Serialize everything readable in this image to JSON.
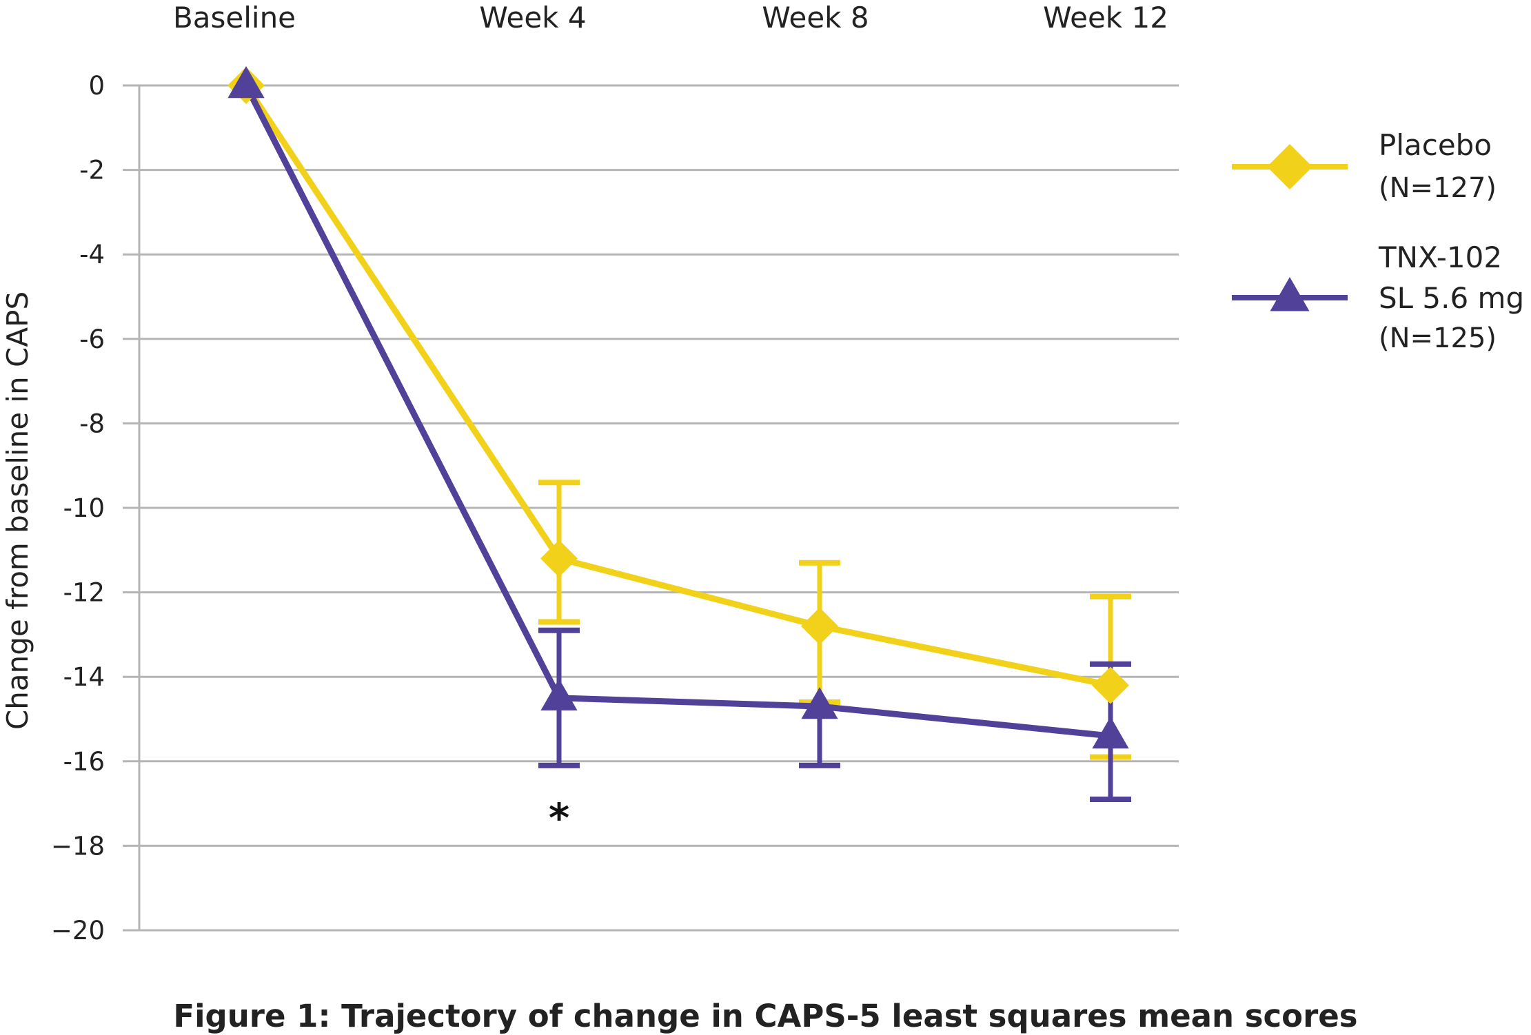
{
  "caption": "Figure 1: Trajectory of change in CAPS-5 least squares mean scores",
  "chart_data": {
    "type": "line",
    "title": "",
    "xlabel": "",
    "ylabel": "Change from baseline in CAPS",
    "categories": [
      "Baseline",
      "Week 4",
      "Week 8",
      "Week 12"
    ],
    "ylim": [
      -20,
      0
    ],
    "yticks": [
      0,
      -2,
      -4,
      -6,
      -8,
      -10,
      -12,
      -14,
      -16,
      -18,
      -20
    ],
    "ytick_labels": [
      "0",
      "-2",
      "-4",
      "-6",
      "-8",
      "-10",
      "-12",
      "-14",
      "-16",
      "−18",
      "−20"
    ],
    "grid": true,
    "legend_position": "right",
    "series": [
      {
        "name": "Placebo",
        "legend_sub": "(N=127)",
        "marker": "diamond",
        "color": "#F2D11A",
        "values": [
          0,
          -11.2,
          -12.8,
          -14.2
        ],
        "error_low": [
          null,
          -12.7,
          -14.6,
          -15.9
        ],
        "error_high": [
          null,
          -9.4,
          -11.3,
          -12.1
        ]
      },
      {
        "name": "TNX-102 SL 5.6 mg",
        "legend_lines": [
          "TNX-102",
          "SL 5.6 mg"
        ],
        "legend_sub": "(N=125)",
        "marker": "triangle",
        "color": "#524199",
        "values": [
          0,
          -14.5,
          -14.7,
          -15.4
        ],
        "error_low": [
          null,
          -16.1,
          -16.1,
          -16.9
        ],
        "error_high": [
          null,
          -12.9,
          null,
          -13.7
        ]
      }
    ],
    "annotations": [
      {
        "text": "*",
        "category": "Week 4",
        "y": -17.1
      }
    ]
  }
}
